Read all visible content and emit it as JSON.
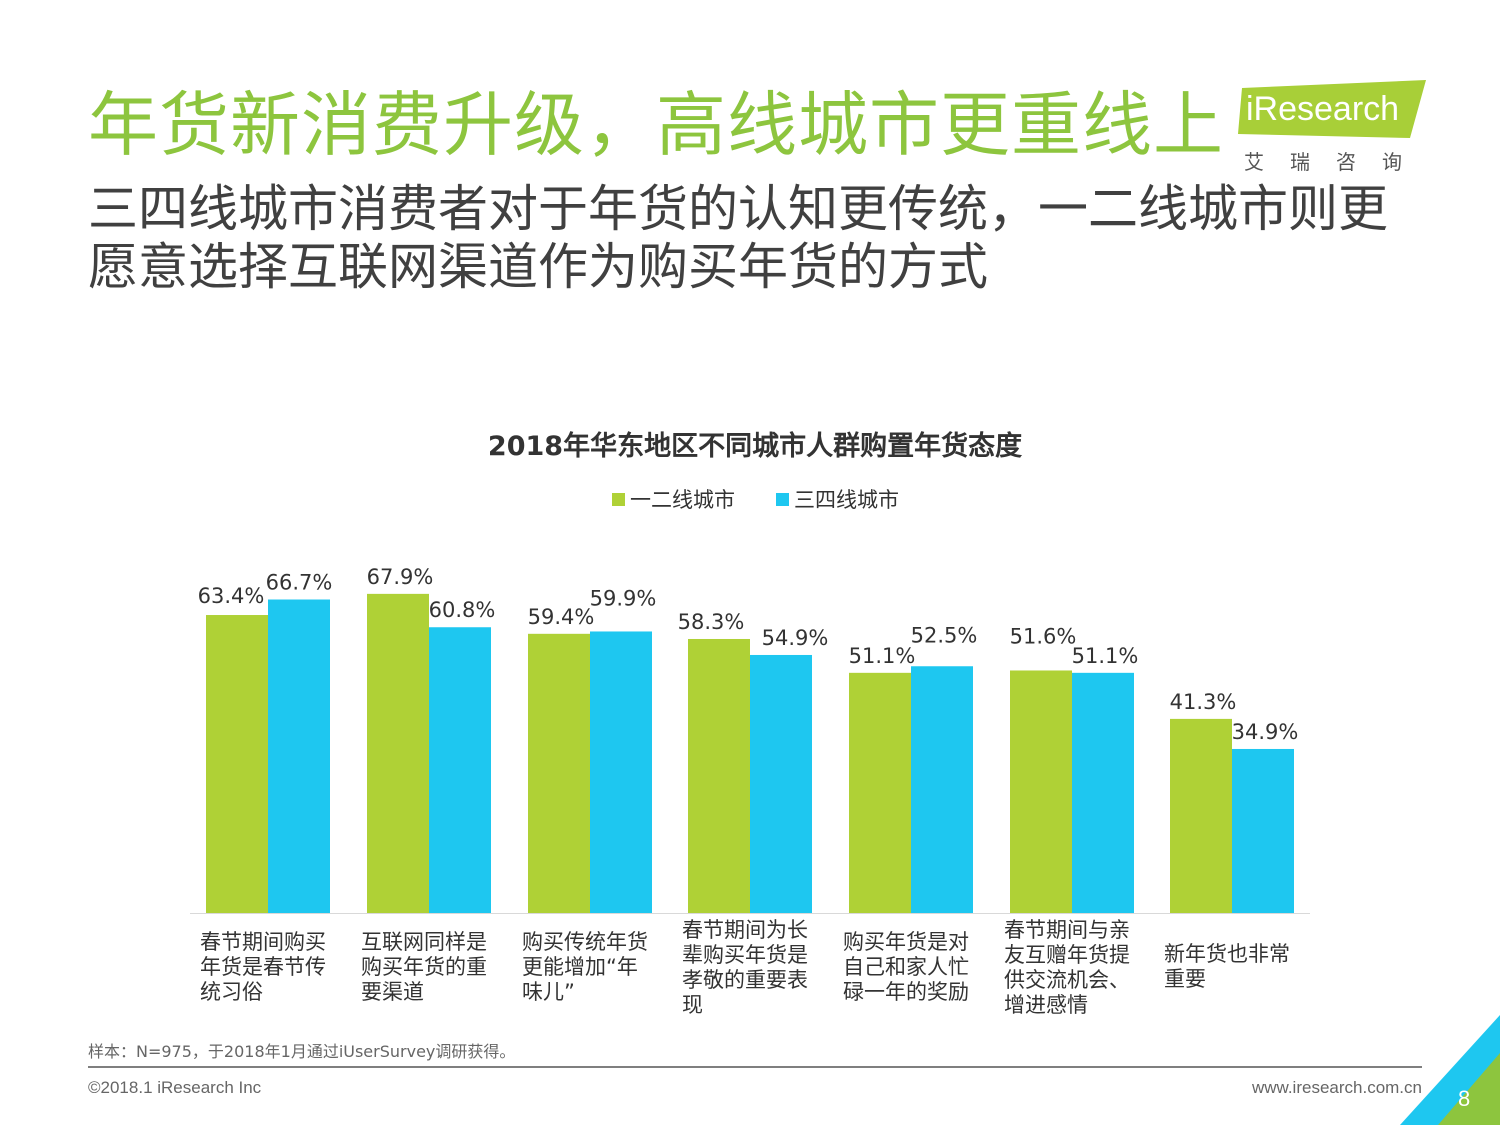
{
  "page": {
    "title": "年货新消费升级，高线城市更重线上",
    "subtitle": "三四线城市消费者对于年货的认知更传统，一二线城市则更愿意选择互联网渠道作为购买年货的方式",
    "note": "样本：N=975，于2018年1月通过iUserSurvey调研获得。",
    "copyright": "©2018.1 iResearch Inc",
    "website": "www.iresearch.com.cn",
    "page_number": "8"
  },
  "logo": {
    "text": "iResearch",
    "cn": "艾瑞咨询",
    "color": "#a8cf38"
  },
  "colors": {
    "title": "#8dc53e",
    "series1": "#afd136",
    "series2": "#1ec7f0"
  },
  "chart_data": {
    "type": "bar",
    "title": "2018年华东地区不同城市人群购置年货态度",
    "legend_position": "top-center",
    "grid": false,
    "ylim": [
      0,
      100
    ],
    "categories": [
      "春节期间购买年货是春节传统习俗",
      "互联网同样是购买年货的重要渠道",
      "购买传统年货更能增加“年味儿”",
      "春节期间为长辈购买年货是孝敬的重要表现",
      "购买年货是对自己和家人忙碌一年的奖励",
      "春节期间与亲友互赠年货提供交流机会、增进感情",
      "新年货也非常重要"
    ],
    "series": [
      {
        "name": "一二线城市",
        "values": [
          63.4,
          67.9,
          59.4,
          58.3,
          51.1,
          51.6,
          41.3
        ],
        "labels": [
          "63.4%",
          "67.9%",
          "59.4%",
          "58.3%",
          "51.1%",
          "51.6%",
          "41.3%"
        ]
      },
      {
        "name": "三四线城市",
        "values": [
          66.7,
          60.8,
          59.9,
          54.9,
          52.5,
          51.1,
          34.9
        ],
        "labels": [
          "66.7%",
          "60.8%",
          "59.9%",
          "54.9%",
          "52.5%",
          "51.1%",
          "34.9%"
        ]
      }
    ]
  }
}
